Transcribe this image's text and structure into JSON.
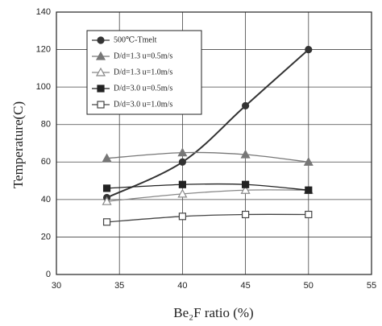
{
  "chart_data": {
    "type": "line",
    "x": [
      34,
      40,
      45,
      50
    ],
    "series": [
      {
        "name": "500℃-Tmelt",
        "color": "#333333",
        "marker": "circle",
        "filled": true,
        "values": [
          41,
          60,
          90,
          120
        ]
      },
      {
        "name": "D/d=1.3 u=0.5m/s",
        "color": "#777777",
        "marker": "triangle",
        "filled": true,
        "values": [
          62,
          65,
          64,
          60
        ]
      },
      {
        "name": "D/d=1.3 u=1.0m/s",
        "color": "#888888",
        "marker": "triangle",
        "filled": false,
        "values": [
          39,
          43,
          45,
          45
        ]
      },
      {
        "name": "D/d=3.0 u=0.5m/s",
        "color": "#222222",
        "marker": "square",
        "filled": true,
        "values": [
          46,
          48,
          48,
          45
        ]
      },
      {
        "name": "D/d=3.0 u=1.0m/s",
        "color": "#444444",
        "marker": "square",
        "filled": false,
        "values": [
          28,
          31,
          32,
          32
        ]
      }
    ],
    "xlabel": "Be₂F ratio (%)",
    "ylabel": "Temperature(C)",
    "xlim": [
      30,
      55
    ],
    "xticks": [
      30,
      35,
      40,
      45,
      50,
      55
    ],
    "ylim": [
      0,
      140
    ],
    "yticks": [
      0,
      20,
      40,
      60,
      80,
      100,
      120,
      140
    ],
    "grid": true,
    "legend": "upper left"
  }
}
